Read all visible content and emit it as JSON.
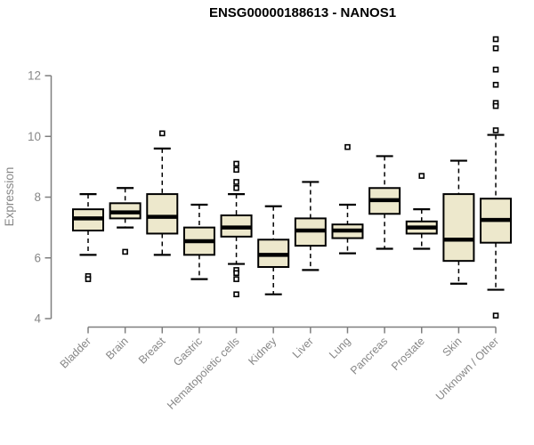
{
  "chart_data": {
    "type": "boxplot",
    "title": "ENSG00000188613 - NANOS1",
    "ylabel": "Expression",
    "xlabel": "",
    "yticks": [
      4,
      6,
      8,
      10,
      12
    ],
    "ylim": [
      4,
      13.4
    ],
    "grid": false,
    "legend": "none",
    "categories": [
      "Bladder",
      "Brain",
      "Breast",
      "Gastric",
      "Hematopoietic cells",
      "Kidney",
      "Liver",
      "Lung",
      "Pancreas",
      "Prostate",
      "Skin",
      "Unknown / Other"
    ],
    "series": [
      {
        "name": "Bladder",
        "whisker_low": 6.1,
        "q1": 6.9,
        "median": 7.3,
        "q3": 7.6,
        "whisker_high": 8.1,
        "outliers": [
          5.4,
          5.3
        ]
      },
      {
        "name": "Brain",
        "whisker_low": 7.0,
        "q1": 7.3,
        "median": 7.5,
        "q3": 7.8,
        "whisker_high": 8.3,
        "outliers": [
          6.2
        ]
      },
      {
        "name": "Breast",
        "whisker_low": 6.1,
        "q1": 6.8,
        "median": 7.35,
        "q3": 8.1,
        "whisker_high": 9.6,
        "outliers": [
          10.1
        ]
      },
      {
        "name": "Gastric",
        "whisker_low": 5.3,
        "q1": 6.1,
        "median": 6.55,
        "q3": 7.0,
        "whisker_high": 7.75,
        "outliers": []
      },
      {
        "name": "Hematopoietic cells",
        "whisker_low": 5.8,
        "q1": 6.7,
        "median": 7.0,
        "q3": 7.4,
        "whisker_high": 8.1,
        "outliers": [
          9.1,
          8.9,
          8.5,
          8.3,
          5.6,
          5.5,
          5.3,
          4.8
        ]
      },
      {
        "name": "Kidney",
        "whisker_low": 4.8,
        "q1": 5.7,
        "median": 6.1,
        "q3": 6.6,
        "whisker_high": 7.7,
        "outliers": []
      },
      {
        "name": "Liver",
        "whisker_low": 5.6,
        "q1": 6.4,
        "median": 6.9,
        "q3": 7.3,
        "whisker_high": 8.5,
        "outliers": []
      },
      {
        "name": "Lung",
        "whisker_low": 6.15,
        "q1": 6.65,
        "median": 6.9,
        "q3": 7.1,
        "whisker_high": 7.75,
        "outliers": [
          9.65
        ]
      },
      {
        "name": "Pancreas",
        "whisker_low": 6.3,
        "q1": 7.45,
        "median": 7.9,
        "q3": 8.3,
        "whisker_high": 9.35,
        "outliers": []
      },
      {
        "name": "Prostate",
        "whisker_low": 6.3,
        "q1": 6.8,
        "median": 7.0,
        "q3": 7.2,
        "whisker_high": 7.6,
        "outliers": [
          8.7
        ]
      },
      {
        "name": "Skin",
        "whisker_low": 5.15,
        "q1": 5.9,
        "median": 6.6,
        "q3": 8.1,
        "whisker_high": 9.2,
        "outliers": []
      },
      {
        "name": "Unknown / Other",
        "whisker_low": 4.95,
        "q1": 6.5,
        "median": 7.25,
        "q3": 7.95,
        "whisker_high": 10.05,
        "outliers": [
          13.2,
          12.9,
          12.2,
          11.7,
          11.1,
          11.0,
          10.2,
          4.1
        ]
      }
    ],
    "colors": {
      "box_fill": "#EDE8CC",
      "box_stroke": "#000000",
      "median": "#000000",
      "whisker": "#000000",
      "outlier_stroke": "#000000",
      "outlier_fill": "#ffffff",
      "axis": "#7f7f7f",
      "tick_label": "#878787",
      "title": "#000000",
      "background": "#ffffff"
    }
  }
}
